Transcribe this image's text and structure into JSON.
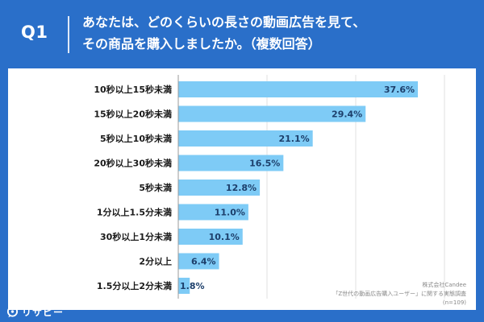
{
  "header": {
    "label": "Q1",
    "line1": "あなたは、どのくらいの長さの動画広告を見て、",
    "line2": "その商品を購入しましたか。（複数回答）"
  },
  "chart_data": {
    "type": "bar",
    "orientation": "horizontal",
    "categories": [
      "10秒以上15秒未満",
      "15秒以上20秒未満",
      "5秒以上10秒未満",
      "20秒以上30秒未満",
      "5秒未満",
      "1分以上1.5分未満",
      "30秒以上1分未満",
      "2分以上",
      "1.5分以上2分未満"
    ],
    "values": [
      37.6,
      29.4,
      21.1,
      16.5,
      12.8,
      11.0,
      10.1,
      6.4,
      1.8
    ],
    "value_labels": [
      "37.6%",
      "29.4%",
      "21.1%",
      "16.5%",
      "12.8%",
      "11.0%",
      "10.1%",
      "6.4%",
      "1.8%"
    ],
    "xlim": [
      0,
      40
    ],
    "grid": true,
    "bar_color": "#7ecbf6"
  },
  "source_note": {
    "line1": "株式会社Candee",
    "line2": "「Z世代の動画広告購入ユーザー」に関する実態調査",
    "line3": "(n=109)"
  },
  "logo": {
    "text": "リサピー"
  },
  "colors": {
    "background": "#2a6fc9",
    "bar": "#7ecbf6",
    "text": "#1a1a1a",
    "grid": "#e2e2e2"
  }
}
